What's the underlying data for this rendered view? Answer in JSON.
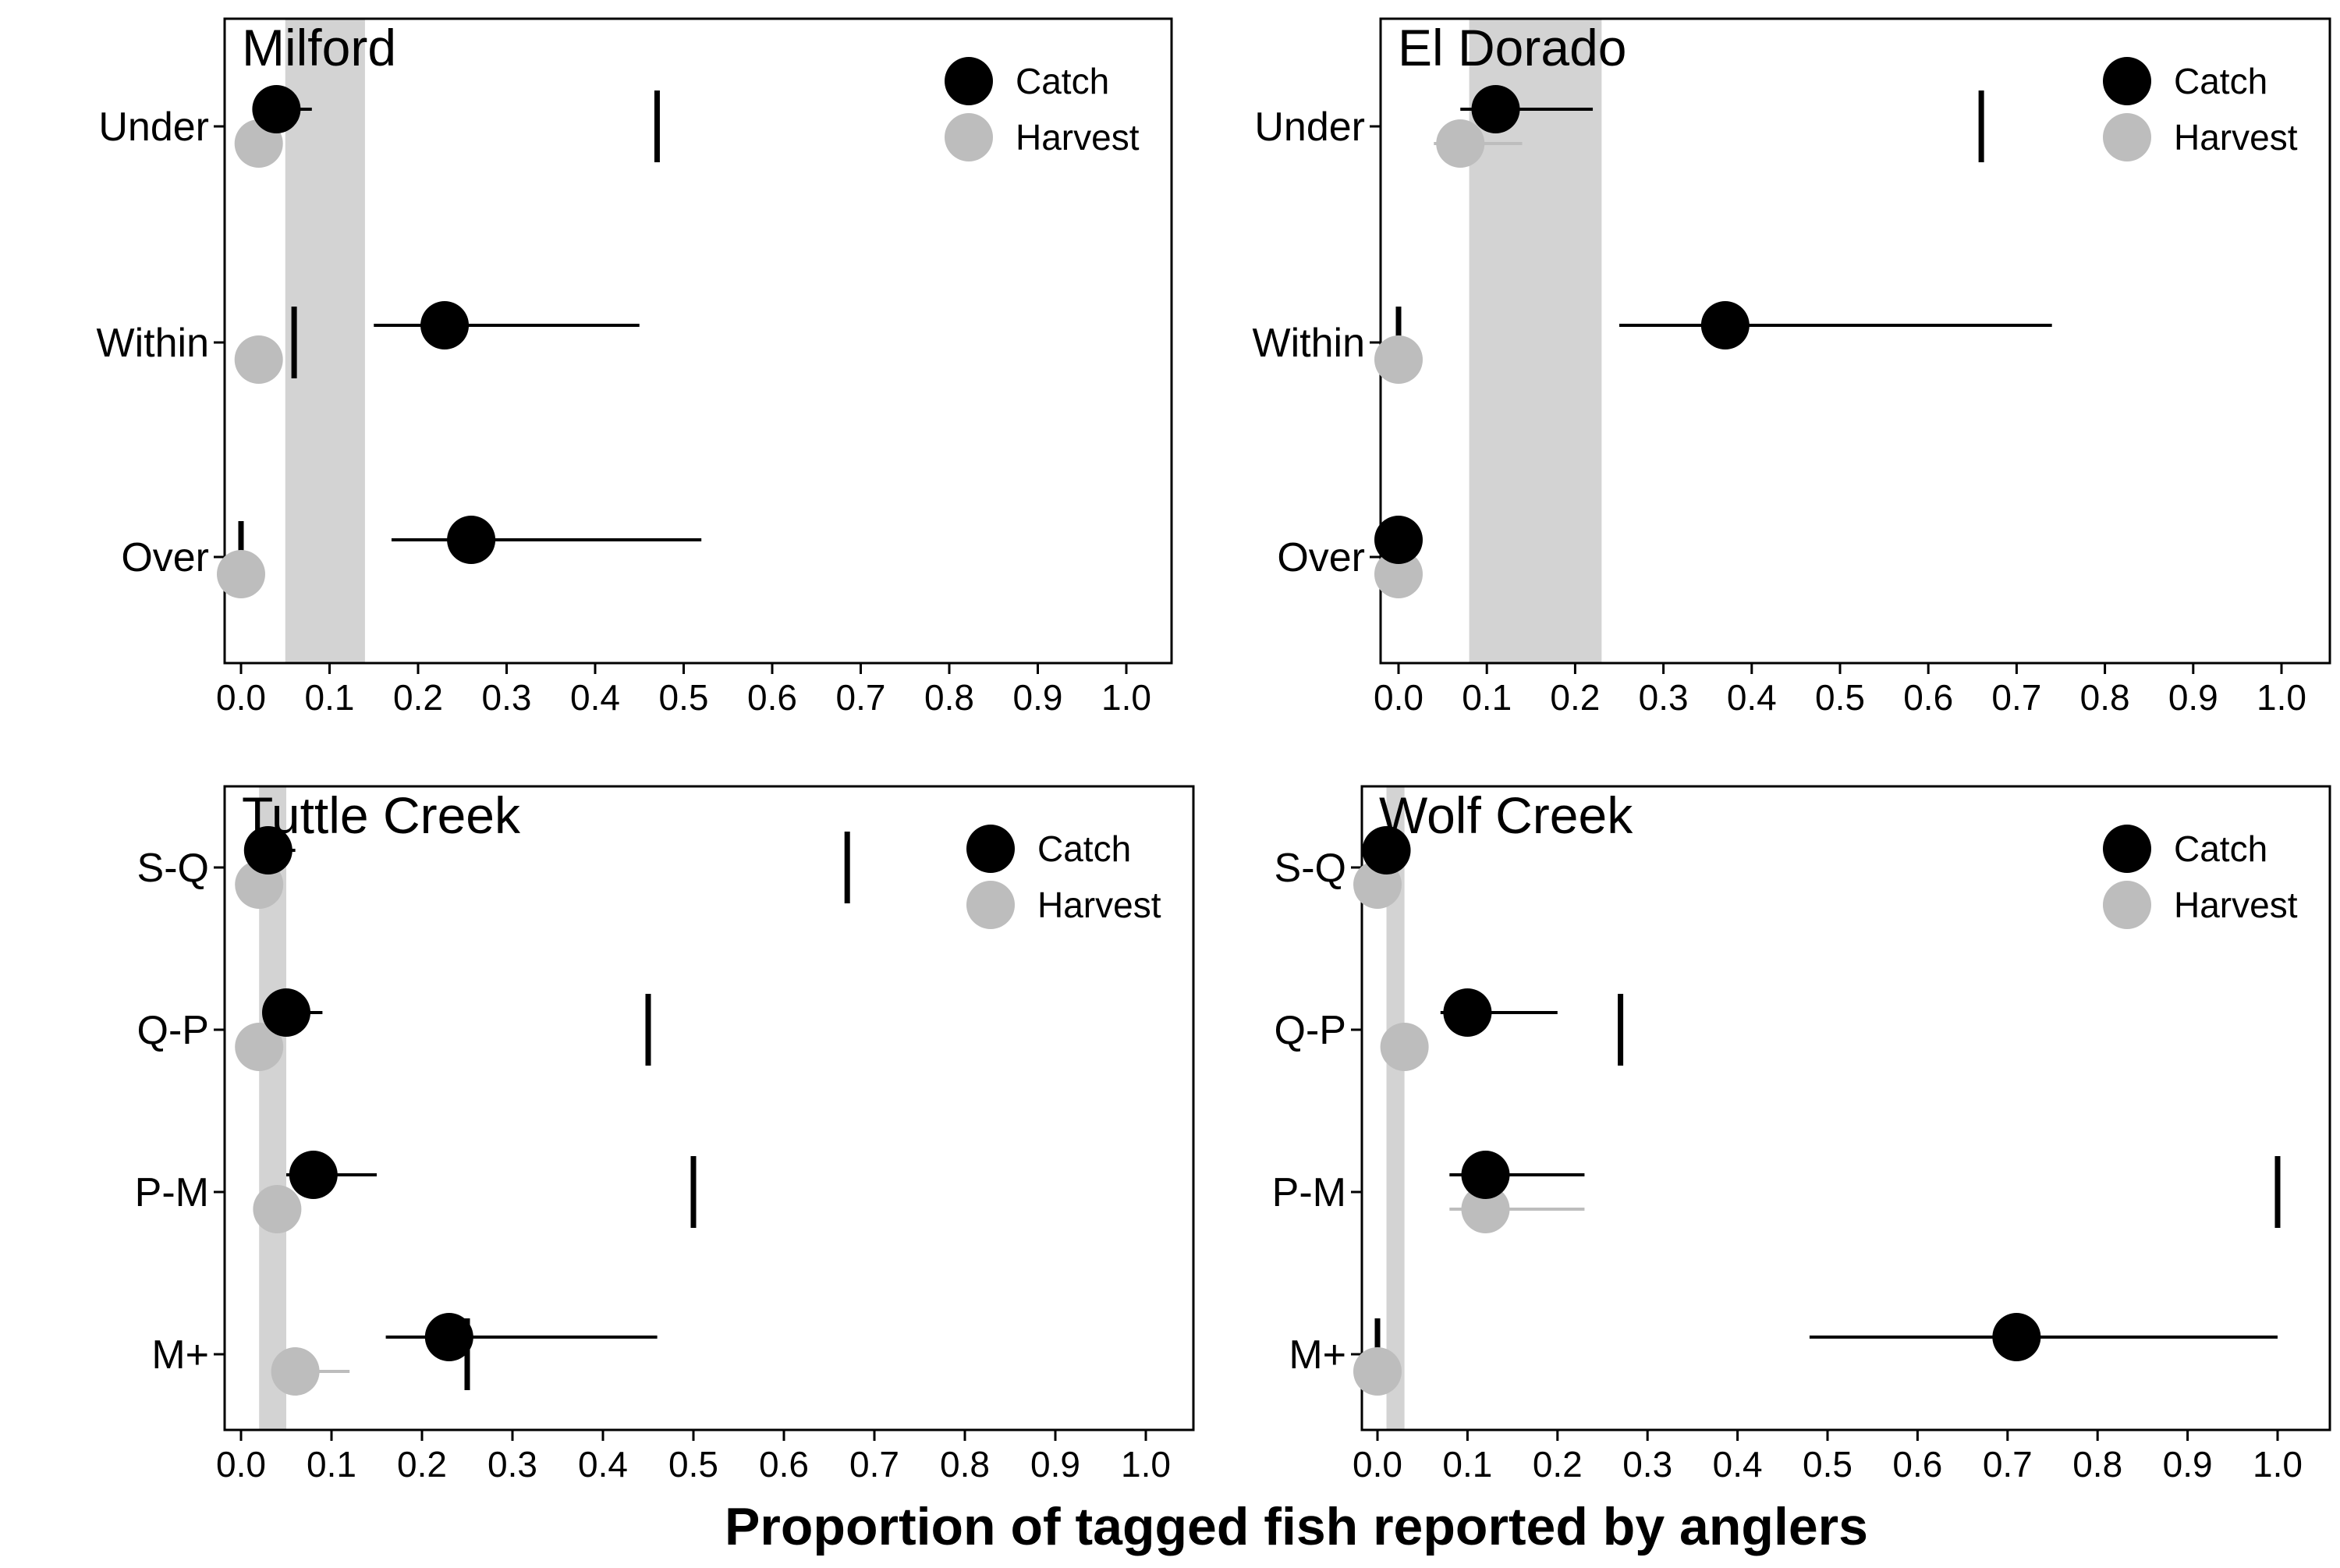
{
  "chart_data": [
    {
      "type": "scatter",
      "title": "Milford",
      "categories": [
        "Under",
        "Within",
        "Over"
      ],
      "xlim": [
        0,
        1.0
      ],
      "xticks": [
        "0.0",
        "0.1",
        "0.2",
        "0.3",
        "0.4",
        "0.5",
        "0.6",
        "0.7",
        "0.8",
        "0.9",
        "1.0"
      ],
      "band": [
        0.05,
        0.14
      ],
      "series": [
        {
          "name": "Catch",
          "color": "#000000",
          "values": [
            0.04,
            0.23,
            0.26
          ],
          "ci_low": [
            0.02,
            0.15,
            0.17
          ],
          "ci_high": [
            0.08,
            0.45,
            0.52
          ]
        },
        {
          "name": "Harvest",
          "color": "#bdbdbd",
          "values": [
            0.02,
            0.02,
            0.0
          ],
          "ci_low": [
            null,
            null,
            null
          ],
          "ci_high": [
            null,
            null,
            null
          ]
        }
      ],
      "reference": [
        0.47,
        0.06,
        0.0
      ],
      "legend": "top-right",
      "grid": false
    },
    {
      "type": "scatter",
      "title": "El Dorado",
      "categories": [
        "Under",
        "Within",
        "Over"
      ],
      "xlim": [
        0,
        1.0
      ],
      "xticks": [
        "0.0",
        "0.1",
        "0.2",
        "0.3",
        "0.4",
        "0.5",
        "0.6",
        "0.7",
        "0.8",
        "0.9",
        "1.0"
      ],
      "band": [
        0.08,
        0.23
      ],
      "series": [
        {
          "name": "Catch",
          "color": "#000000",
          "values": [
            0.11,
            0.37,
            0.0
          ],
          "ci_low": [
            0.07,
            0.25,
            null
          ],
          "ci_high": [
            0.22,
            0.74,
            null
          ]
        },
        {
          "name": "Harvest",
          "color": "#bdbdbd",
          "values": [
            0.07,
            0.0,
            0.0
          ],
          "ci_low": [
            0.04,
            null,
            null
          ],
          "ci_high": [
            0.14,
            null,
            null
          ]
        }
      ],
      "reference": [
        0.66,
        0.0,
        null
      ],
      "legend": "top-right",
      "grid": false
    },
    {
      "type": "scatter",
      "title": "Tuttle Creek",
      "categories": [
        "S-Q",
        "Q-P",
        "P-M",
        "M+"
      ],
      "xlim": [
        0,
        1.0
      ],
      "xticks": [
        "0.0",
        "0.1",
        "0.2",
        "0.3",
        "0.4",
        "0.5",
        "0.6",
        "0.7",
        "0.8",
        "0.9",
        "1.0"
      ],
      "band": [
        0.02,
        0.05
      ],
      "series": [
        {
          "name": "Catch",
          "color": "#000000",
          "values": [
            0.03,
            0.05,
            0.08,
            0.23
          ],
          "ci_low": [
            0.01,
            0.03,
            0.05,
            0.16
          ],
          "ci_high": [
            0.06,
            0.09,
            0.15,
            0.46
          ]
        },
        {
          "name": "Harvest",
          "color": "#bdbdbd",
          "values": [
            0.02,
            0.02,
            0.04,
            0.06
          ],
          "ci_low": [
            null,
            null,
            null,
            0.04
          ],
          "ci_high": [
            null,
            null,
            null,
            0.12
          ]
        }
      ],
      "reference": [
        0.67,
        0.45,
        0.5,
        0.25
      ],
      "legend": "top-right",
      "grid": false
    },
    {
      "type": "scatter",
      "title": "Wolf Creek",
      "categories": [
        "S-Q",
        "Q-P",
        "P-M",
        "M+"
      ],
      "xlim": [
        0,
        1.0
      ],
      "xticks": [
        "0.0",
        "0.1",
        "0.2",
        "0.3",
        "0.4",
        "0.5",
        "0.6",
        "0.7",
        "0.8",
        "0.9",
        "1.0"
      ],
      "band": [
        0.01,
        0.03
      ],
      "series": [
        {
          "name": "Catch",
          "color": "#000000",
          "values": [
            0.01,
            0.1,
            0.12,
            0.71
          ],
          "ci_low": [
            null,
            0.07,
            0.08,
            0.48
          ],
          "ci_high": [
            null,
            0.2,
            0.23,
            1.0
          ]
        },
        {
          "name": "Harvest",
          "color": "#bdbdbd",
          "values": [
            0.0,
            0.03,
            0.12,
            0.0
          ],
          "ci_low": [
            null,
            null,
            0.08,
            null
          ],
          "ci_high": [
            null,
            null,
            0.23,
            null
          ]
        }
      ],
      "reference": [
        0.0,
        0.27,
        1.0,
        0.0
      ],
      "legend": "top-right",
      "grid": false
    }
  ],
  "xlabel": "Proportion of tagged fish reported by anglers"
}
